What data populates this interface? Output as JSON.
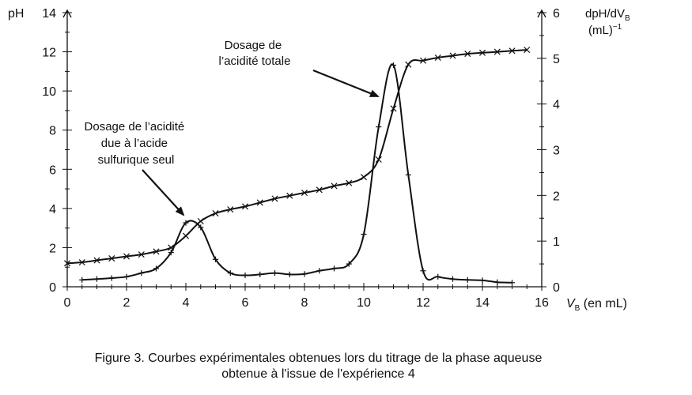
{
  "chart_data": {
    "type": "line",
    "caption_line1": "Figure 3. Courbes expérimentales obtenues lors du titrage de la phase aqueuse",
    "caption_line2": "obtenue à l'issue de l'expérience 4",
    "y_left_label": "pH",
    "y_right_label_line1": "dpH/dV",
    "y_right_label_sub": "B",
    "y_right_label_line2": "(mL)",
    "y_right_label_sup": "−1",
    "x_label": "V",
    "x_label_sub": "B",
    "x_label_unit": " (en mL)",
    "xlim": [
      0,
      16
    ],
    "ylim_left": [
      0,
      14
    ],
    "ylim_right": [
      0,
      6
    ],
    "x_ticks": [
      "0",
      "2",
      "4",
      "6",
      "8",
      "10",
      "12",
      "14",
      "16"
    ],
    "y_left_ticks": [
      "0",
      "2",
      "4",
      "6",
      "8",
      "10",
      "12",
      "14"
    ],
    "y_right_ticks": [
      "0",
      "1",
      "2",
      "3",
      "4",
      "5",
      "6"
    ],
    "annotations": [
      {
        "lines": [
          "Dosage de l’acidité",
          "due à l’acide",
          "sulfurique seul"
        ],
        "points_to": {
          "x": 4.0,
          "y_right": 1.4
        }
      },
      {
        "lines": [
          "Dosage de",
          "l’acidité totale"
        ],
        "points_to": {
          "x": 10.5,
          "y_right": 4.2
        }
      }
    ],
    "series": [
      {
        "axis": "left",
        "marker": "x",
        "x": [
          0,
          0.5,
          1.0,
          1.5,
          2.0,
          2.5,
          3.0,
          3.5,
          4.0,
          4.5,
          5.0,
          5.5,
          6.0,
          6.5,
          7.0,
          7.5,
          8.0,
          8.5,
          9.0,
          9.5,
          10.0,
          10.5,
          11.0,
          11.5,
          12.0,
          12.5,
          13.0,
          13.5,
          14.0,
          14.5,
          15.0,
          15.5
        ],
        "y": [
          1.2,
          1.25,
          1.35,
          1.45,
          1.55,
          1.65,
          1.8,
          2.0,
          2.6,
          3.35,
          3.75,
          3.95,
          4.1,
          4.3,
          4.5,
          4.65,
          4.8,
          4.95,
          5.15,
          5.3,
          5.6,
          6.5,
          9.1,
          11.35,
          11.55,
          11.7,
          11.8,
          11.9,
          11.95,
          12.0,
          12.05,
          12.1
        ]
      },
      {
        "axis": "right",
        "marker": "+",
        "x": [
          0.5,
          1.0,
          1.5,
          2.0,
          2.5,
          3.0,
          3.5,
          4.0,
          4.5,
          5.0,
          5.5,
          6.0,
          6.5,
          7.0,
          7.5,
          8.0,
          8.5,
          9.0,
          9.5,
          10.0,
          10.5,
          11.0,
          11.5,
          12.0,
          12.5,
          13.0,
          13.5,
          14.0,
          14.5,
          15.0
        ],
        "y": [
          0.15,
          0.17,
          0.19,
          0.22,
          0.3,
          0.4,
          0.75,
          1.4,
          1.3,
          0.6,
          0.3,
          0.25,
          0.27,
          0.3,
          0.27,
          0.28,
          0.35,
          0.4,
          0.5,
          1.15,
          3.5,
          4.85,
          2.45,
          0.35,
          0.22,
          0.17,
          0.15,
          0.14,
          0.1,
          0.09
        ]
      }
    ]
  }
}
